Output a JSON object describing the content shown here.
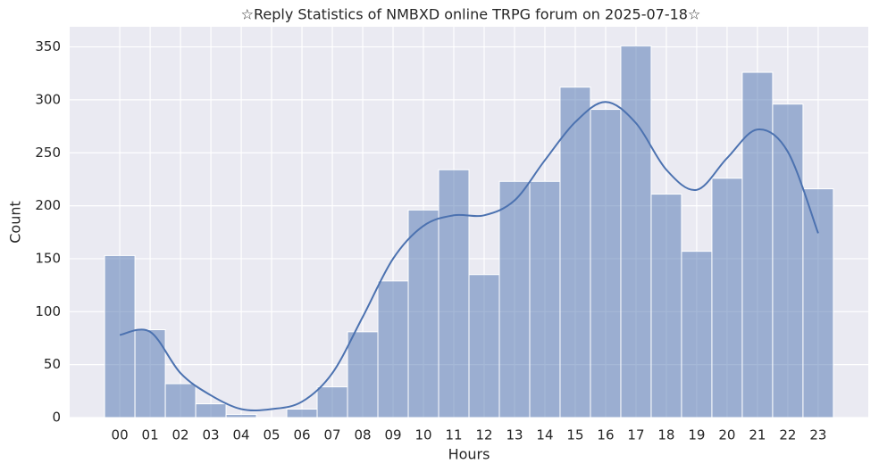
{
  "chart_data": {
    "type": "histogram",
    "title": "☆Reply Statistics of NMBXD online TRPG forum on 2025-07-18☆",
    "x_label": "Hours",
    "y_label": "Count",
    "categories": [
      "00",
      "01",
      "02",
      "03",
      "04",
      "05",
      "06",
      "07",
      "08",
      "09",
      "10",
      "11",
      "12",
      "13",
      "14",
      "15",
      "16",
      "17",
      "18",
      "19",
      "20",
      "21",
      "22",
      "23"
    ],
    "values": [
      153,
      83,
      32,
      13,
      3,
      0,
      8,
      29,
      81,
      129,
      196,
      234,
      135,
      223,
      223,
      312,
      291,
      351,
      211,
      157,
      226,
      326,
      296,
      216
    ],
    "color": "#4c72b0",
    "kde_values": [
      78,
      81,
      42,
      21,
      8,
      8,
      15,
      42,
      95,
      150,
      181,
      191,
      191,
      205,
      243,
      279,
      298,
      278,
      234,
      215,
      245,
      272,
      251,
      174
    ],
    "kde_color": "#4c72b0",
    "ylim": [
      0,
      369
    ],
    "yticks": [
      0,
      50,
      100,
      150,
      200,
      250,
      300,
      350
    ],
    "grid": true
  }
}
